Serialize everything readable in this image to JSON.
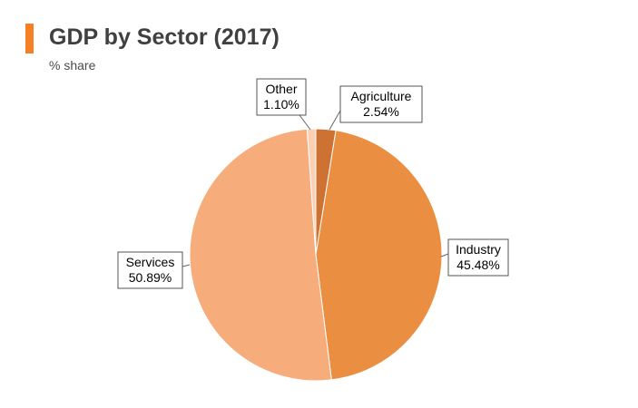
{
  "header": {
    "title": "GDP by Sector (2017)",
    "subtitle": "% share"
  },
  "colors": {
    "accent": "#f58025"
  },
  "chart_data": {
    "type": "pie",
    "title": "GDP by Sector (2017)",
    "subtitle": "% share",
    "legend": "none",
    "slices": [
      {
        "name": "Agriculture",
        "value": 2.54,
        "label": "2.54%",
        "color": "#cd7232"
      },
      {
        "name": "Industry",
        "value": 45.48,
        "label": "45.48%",
        "color": "#ea8f41"
      },
      {
        "name": "Services",
        "value": 50.89,
        "label": "50.89%",
        "color": "#f7ad7b"
      },
      {
        "name": "Other",
        "value": 1.1,
        "label": "1.10%",
        "color": "#fbcfb4"
      }
    ]
  }
}
